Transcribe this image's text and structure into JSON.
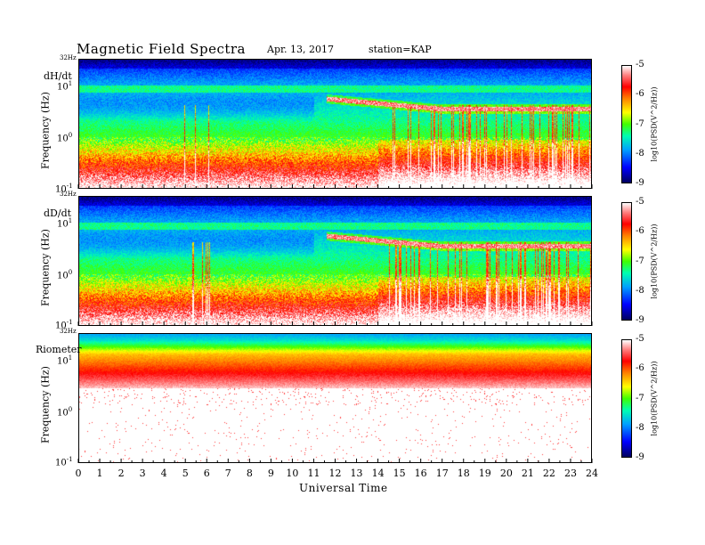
{
  "header": {
    "title": "Magnetic  Field  Spectra",
    "date": "Apr. 13, 2017",
    "station": "station=KAP"
  },
  "chart_data": [
    {
      "type": "heatmap",
      "label": "dH/dt",
      "ylabel": "Frequency  (Hz)",
      "xlabel": "",
      "top_label": "32Hz",
      "yticks": [
        "10^1",
        "10^0",
        "10^-1"
      ],
      "xlim": [
        0,
        24
      ],
      "colorbar": {
        "label": "log10(PSD(V^2/Hz))",
        "ticks": [
          "-5",
          "-6",
          "-7",
          "-8",
          "-9"
        ],
        "range": [
          -9,
          -5
        ]
      },
      "features": {
        "tone_start_hour": 11.6,
        "tone_start_freq_hz": 5.5,
        "tone_end_hour": 23.3,
        "tone_end_freq_hz": 3.5
      }
    },
    {
      "type": "heatmap",
      "label": "dD/dt",
      "ylabel": "Frequency  (Hz)",
      "xlabel": "",
      "top_label": "32Hz",
      "yticks": [
        "10^1",
        "10^0",
        "10^-1"
      ],
      "xlim": [
        0,
        24
      ],
      "colorbar": {
        "label": "log10(PSD(V^2/Hz))",
        "ticks": [
          "-5",
          "-6",
          "-7",
          "-8",
          "-9"
        ],
        "range": [
          -9,
          -5
        ]
      },
      "features": {
        "tone_start_hour": 11.6,
        "tone_start_freq_hz": 5.5,
        "tone_end_hour": 23.3,
        "tone_end_freq_hz": 3.5
      }
    },
    {
      "type": "heatmap",
      "label": "Riometer",
      "ylabel": "Frequency  (Hz)",
      "xlabel": "Universal Time",
      "top_label": "32Hz",
      "yticks": [
        "10^1",
        "10^0",
        "10^-1"
      ],
      "xlim": [
        0,
        24
      ],
      "xticks": [
        "0",
        "1",
        "2",
        "3",
        "4",
        "5",
        "6",
        "7",
        "8",
        "9",
        "10",
        "11",
        "12",
        "13",
        "14",
        "15",
        "16",
        "17",
        "18",
        "19",
        "20",
        "21",
        "22",
        "23",
        "24"
      ],
      "colorbar": {
        "label": "log10(PSD(V^2/Hz))",
        "ticks": [
          "-5",
          "-6",
          "-7",
          "-8",
          "-9"
        ],
        "range": [
          -9,
          -5
        ]
      }
    }
  ],
  "colors": {
    "scale": [
      "#000060",
      "#0000ff",
      "#00a0ff",
      "#00ffb0",
      "#40ff00",
      "#ffff00",
      "#ff8000",
      "#ff0000",
      "#ff8080",
      "#ffffff"
    ]
  }
}
